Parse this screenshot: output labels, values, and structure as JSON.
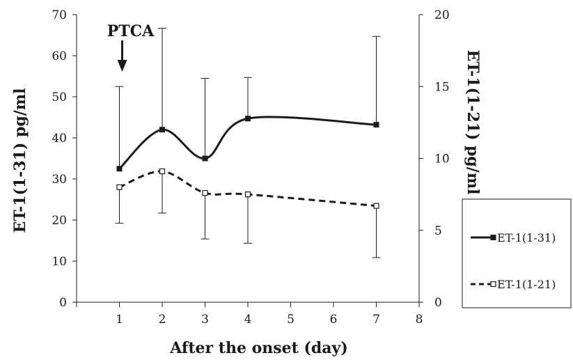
{
  "chart_data": {
    "type": "line",
    "title": "",
    "xlabel": "After the onset (day)",
    "ylabel_left": "ET-1(1-31)  pg/ml",
    "ylabel_right": "ET-1(1-21)  pg/ml",
    "x_ticks": [
      "1",
      "2",
      "3",
      "4",
      "5",
      "6",
      "7",
      "8"
    ],
    "xlim": [
      0,
      8
    ],
    "ylim_left": [
      0,
      70
    ],
    "ylim_right": [
      0,
      20
    ],
    "y_ticks_left": [
      "0",
      "10",
      "20",
      "30",
      "40",
      "50",
      "60",
      "70"
    ],
    "y_ticks_right": [
      "0",
      "5",
      "10",
      "15",
      "20"
    ],
    "grid": false,
    "legend_placement": "right",
    "series": [
      {
        "name": "ET-1(1-31)",
        "axis": "left",
        "line_style": "solid",
        "marker": "filled-square",
        "color": "#1a1a1a",
        "x": [
          1,
          2,
          3,
          4,
          7
        ],
        "y": [
          32.5,
          42.0,
          35.0,
          44.7,
          43.2
        ],
        "err_high": [
          52.5,
          66.7,
          54.5,
          54.7,
          64.7
        ]
      },
      {
        "name": "ET-1(1-21)",
        "axis": "right",
        "line_style": "dashed",
        "marker": "open-square",
        "color": "#1a1a1a",
        "x": [
          1,
          2,
          3,
          4,
          7
        ],
        "y": [
          8.0,
          9.1,
          7.6,
          7.5,
          6.7
        ],
        "err_low": [
          5.5,
          6.2,
          4.4,
          4.1,
          3.1
        ]
      }
    ],
    "annotation": {
      "label": "PTCA",
      "x": 1
    }
  }
}
